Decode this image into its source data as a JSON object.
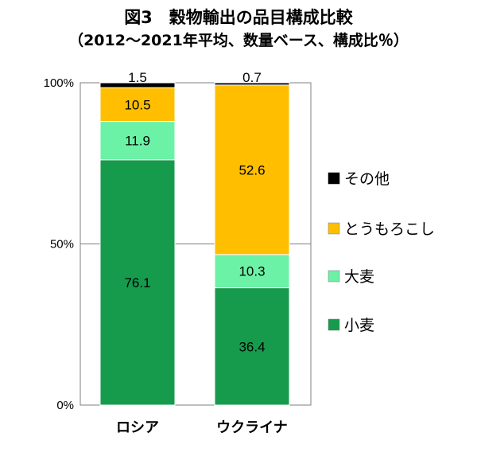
{
  "chart_data": {
    "type": "bar",
    "stacked": true,
    "title": "図3　穀物輸出の品目構成比較",
    "subtitle": "（2012～2021年平均、数量ベース、構成比％）",
    "categories": [
      "ロシア",
      "ウクライナ"
    ],
    "series": [
      {
        "name": "小麦",
        "color": "#169b4d",
        "values": [
          76.1,
          36.4
        ]
      },
      {
        "name": "大麦",
        "color": "#6bf2a6",
        "values": [
          11.9,
          10.3
        ]
      },
      {
        "name": "とうもろこし",
        "color": "#ffbf00",
        "values": [
          10.5,
          52.6
        ]
      },
      {
        "name": "その他",
        "color": "#000000",
        "values": [
          1.5,
          0.7
        ]
      }
    ],
    "data_labels": [
      [
        "76.1",
        "36.4"
      ],
      [
        "11.9",
        "10.3"
      ],
      [
        "10.5",
        "52.6"
      ],
      [
        "1.5",
        "0.7"
      ]
    ],
    "yticks": [
      "0%",
      "50%",
      "100%"
    ],
    "ylim": [
      0,
      100
    ],
    "legend_position": "right",
    "gridlines": true
  }
}
